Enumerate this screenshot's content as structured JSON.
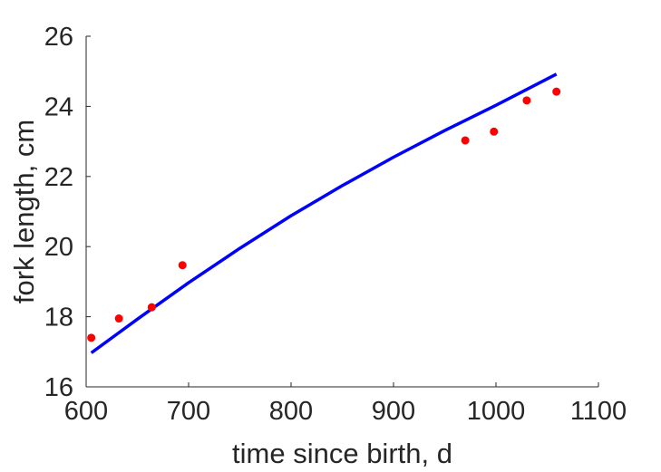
{
  "chart_data": {
    "type": "scatter",
    "title": "",
    "xlabel": "time since birth, d",
    "ylabel": "fork length, cm",
    "xlim": [
      600,
      1100
    ],
    "ylim": [
      16,
      26
    ],
    "xticks": [
      600,
      700,
      800,
      900,
      1000,
      1100
    ],
    "yticks": [
      16,
      18,
      20,
      22,
      24,
      26
    ],
    "grid": false,
    "legend": "none",
    "series": [
      {
        "kind": "points",
        "color": "#ff0000",
        "x": [
          605,
          632,
          664,
          694,
          970,
          998,
          1030,
          1059
        ],
        "y": [
          17.4,
          17.95,
          18.27,
          19.47,
          23.03,
          23.28,
          24.17,
          24.42
        ]
      },
      {
        "kind": "line",
        "color": "#0000ff",
        "x": [
          605,
          650,
          700,
          750,
          800,
          850,
          900,
          950,
          1000,
          1059
        ],
        "y": [
          16.97,
          17.93,
          18.97,
          19.95,
          20.88,
          21.74,
          22.55,
          23.31,
          24.03,
          24.92
        ]
      }
    ]
  }
}
